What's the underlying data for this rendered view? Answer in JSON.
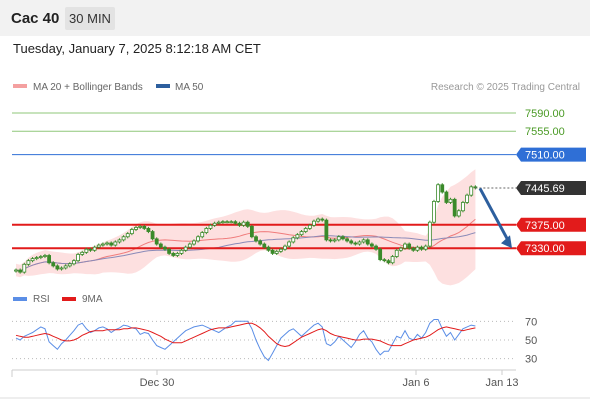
{
  "header": {
    "instrument": "Cac 40",
    "timeframe": "30 MIN",
    "datetime": "Tuesday, January 7, 2025 8:12:18 AM CET"
  },
  "legend": {
    "ma20_bb": "MA 20 + Bollinger Bands",
    "ma50": "MA 50",
    "copyright": "Research © 2025 Trading Central"
  },
  "colors": {
    "resistance_green": "#8fc77a",
    "resistance_blue": "#2f6fd6",
    "support_red": "#e21b1b",
    "ma20": "#f07c7c",
    "ma50": "#8a8ab8",
    "bb_fill": "#fde0e0",
    "candle": "#3a8a2a",
    "arrow": "#2d5f9e",
    "rsi": "#5b8ee6",
    "rsi_ma": "#e21b1b"
  },
  "chart_data": [
    {
      "type": "candlestick",
      "ylim": [
        7265,
        7615
      ],
      "levels": [
        {
          "value": 7590.0,
          "label": "7590.00",
          "kind": "resistance",
          "color": "#8fc77a",
          "labelColor": "#4a9a25",
          "labelBg": "#ffffff"
        },
        {
          "value": 7555.0,
          "label": "7555.00",
          "kind": "resistance",
          "color": "#8fc77a",
          "labelColor": "#4a9a25",
          "labelBg": "#ffffff"
        },
        {
          "value": 7510.0,
          "label": "7510.00",
          "kind": "resistance",
          "color": "#2f6fd6",
          "labelColor": "#ffffff",
          "labelBg": "#2f6fd6"
        },
        {
          "value": 7375.0,
          "label": "7375.00",
          "kind": "support",
          "color": "#e21b1b",
          "labelColor": "#ffffff",
          "labelBg": "#e21b1b"
        },
        {
          "value": 7330.0,
          "label": "7330.00",
          "kind": "support",
          "color": "#e21b1b",
          "labelColor": "#ffffff",
          "labelBg": "#e21b1b"
        }
      ],
      "last_price": {
        "value": 7445.69,
        "label": "7445.69"
      },
      "forecast_arrow": {
        "from": 7445,
        "to": 7330
      },
      "x_ticks": [
        "Dec 30",
        "Jan 6",
        "Jan 13"
      ],
      "close": [
        7288,
        7284,
        7299,
        7306,
        7310,
        7312,
        7314,
        7316,
        7302,
        7296,
        7290,
        7292,
        7296,
        7300,
        7306,
        7318,
        7322,
        7328,
        7326,
        7332,
        7336,
        7338,
        7340,
        7336,
        7342,
        7346,
        7352,
        7358,
        7366,
        7370,
        7372,
        7368,
        7362,
        7348,
        7338,
        7332,
        7328,
        7320,
        7316,
        7320,
        7326,
        7332,
        7338,
        7344,
        7352,
        7360,
        7368,
        7374,
        7378,
        7380,
        7381,
        7381,
        7381,
        7378,
        7374,
        7380,
        7372,
        7352,
        7344,
        7338,
        7332,
        7326,
        7320,
        7324,
        7328,
        7334,
        7342,
        7350,
        7356,
        7362,
        7368,
        7374,
        7382,
        7386,
        7384,
        7346,
        7344,
        7346,
        7352,
        7348,
        7344,
        7340,
        7338,
        7342,
        7346,
        7338,
        7334,
        7328,
        7308,
        7306,
        7302,
        7314,
        7326,
        7330,
        7338,
        7330,
        7326,
        7332,
        7328,
        7334,
        7380,
        7420,
        7452,
        7438,
        7418,
        7424,
        7392,
        7402,
        7418,
        7432,
        7448,
        7446
      ]
    },
    {
      "type": "line",
      "title": "RSI",
      "ylim": [
        20,
        80
      ],
      "y_ticks": [
        70,
        50,
        30
      ],
      "series": [
        {
          "name": "RSI",
          "color": "#5b8ee6",
          "values": [
            52,
            50,
            54,
            56,
            58,
            61,
            64,
            62,
            48,
            44,
            40,
            46,
            50,
            55,
            60,
            66,
            68,
            62,
            58,
            60,
            63,
            64,
            62,
            58,
            61,
            63,
            66,
            65,
            63,
            62,
            56,
            58,
            57,
            50,
            44,
            42,
            40,
            44,
            48,
            52,
            56,
            60,
            62,
            64,
            65,
            66,
            64,
            62,
            60,
            58,
            61,
            64,
            66,
            70,
            70,
            70,
            70,
            62,
            50,
            40,
            32,
            28,
            36,
            44,
            52,
            56,
            60,
            62,
            58,
            54,
            58,
            62,
            66,
            68,
            64,
            46,
            44,
            48,
            54,
            50,
            46,
            42,
            48,
            56,
            60,
            52,
            48,
            40,
            34,
            38,
            38,
            46,
            54,
            52,
            60,
            52,
            50,
            56,
            52,
            58,
            68,
            72,
            72,
            62,
            54,
            58,
            50,
            56,
            62,
            64,
            66,
            65
          ]
        },
        {
          "name": "9MA",
          "color": "#e21b1b",
          "values": [
            55,
            54,
            53,
            53,
            54,
            55,
            56,
            57,
            56,
            54,
            52,
            50,
            49,
            49,
            50,
            52,
            55,
            57,
            59,
            60,
            60,
            60,
            61,
            61,
            61,
            61,
            62,
            62,
            63,
            63,
            62,
            61,
            60,
            58,
            56,
            54,
            51,
            49,
            47,
            47,
            47,
            49,
            51,
            53,
            55,
            57,
            59,
            61,
            62,
            63,
            63,
            63,
            64,
            65,
            66,
            67,
            68,
            68,
            66,
            63,
            59,
            54,
            50,
            46,
            44,
            43,
            44,
            47,
            50,
            53,
            55,
            57,
            59,
            61,
            62,
            60,
            57,
            55,
            54,
            53,
            52,
            51,
            50,
            50,
            51,
            51,
            51,
            50,
            49,
            47,
            45,
            44,
            44,
            44,
            46,
            48,
            50,
            51,
            52,
            53,
            55,
            58,
            61,
            63,
            64,
            63,
            62,
            61,
            60,
            61,
            62,
            63
          ]
        }
      ]
    }
  ]
}
